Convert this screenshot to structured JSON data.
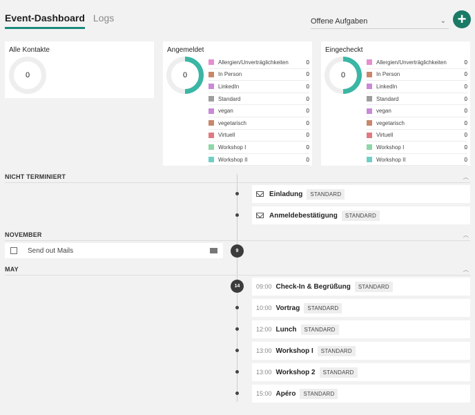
{
  "header": {
    "tabs": [
      {
        "label": "Event-Dashboard",
        "active": true
      },
      {
        "label": "Logs",
        "active": false
      }
    ],
    "select_value": "Offene Aufgaben",
    "add_icon": "plus-icon",
    "accent": "#1a7a66"
  },
  "cards": {
    "alle": {
      "title": "Alle Kontakte",
      "value": "0"
    },
    "angemeldet": {
      "title": "Angemeldet",
      "value": "0",
      "legend": [
        {
          "label": "Allergien/Unverträglichkeiten",
          "value": "0",
          "color": "#e58fcf"
        },
        {
          "label": "In Person",
          "value": "0",
          "color": "#c9876b"
        },
        {
          "label": "LinkedIn",
          "value": "0",
          "color": "#c98ad6"
        },
        {
          "label": "Standard",
          "value": "0",
          "color": "#9e9e9e"
        },
        {
          "label": "vegan",
          "value": "0",
          "color": "#c98ad6"
        },
        {
          "label": "vegetarisch",
          "value": "0",
          "color": "#c9876b"
        },
        {
          "label": "Virtuell",
          "value": "0",
          "color": "#e07a80"
        },
        {
          "label": "Workshop I",
          "value": "0",
          "color": "#8fd6a8"
        },
        {
          "label": "Workshop II",
          "value": "0",
          "color": "#6fcfc5"
        }
      ]
    },
    "eingecheckt": {
      "title": "Eingecheckt",
      "value": "0",
      "legend": [
        {
          "label": "Allergien/Unverträglichkeiten",
          "value": "0",
          "color": "#e58fcf"
        },
        {
          "label": "In Person",
          "value": "0",
          "color": "#c9876b"
        },
        {
          "label": "LinkedIn",
          "value": "0",
          "color": "#c98ad6"
        },
        {
          "label": "Standard",
          "value": "0",
          "color": "#9e9e9e"
        },
        {
          "label": "vegan",
          "value": "0",
          "color": "#c98ad6"
        },
        {
          "label": "vegetarisch",
          "value": "0",
          "color": "#c9876b"
        },
        {
          "label": "Virtuell",
          "value": "0",
          "color": "#e07a80"
        },
        {
          "label": "Workshop I",
          "value": "0",
          "color": "#8fd6a8"
        },
        {
          "label": "Workshop II",
          "value": "0",
          "color": "#6fcfc5"
        }
      ]
    }
  },
  "sections": {
    "nicht_terminiert": "NICHT TERMINIERT",
    "november": "NOVEMBER",
    "may": "MAY"
  },
  "unscheduled": [
    {
      "title": "Einladung",
      "tag": "STANDARD"
    },
    {
      "title": "Anmeldebestätigung",
      "tag": "STANDARD"
    }
  ],
  "november": {
    "badge": "9",
    "task": "Send out Mails"
  },
  "may": {
    "badge": "14",
    "items": [
      {
        "time": "09:00",
        "title": "Check-In & Begrüßung",
        "tag": "STANDARD"
      },
      {
        "time": "10:00",
        "title": "Vortrag",
        "tag": "STANDARD"
      },
      {
        "time": "12:00",
        "title": "Lunch",
        "tag": "STANDARD"
      },
      {
        "time": "13:00",
        "title": "Workshop I",
        "tag": "STANDARD"
      },
      {
        "time": "13:00",
        "title": "Workshop 2",
        "tag": "STANDARD"
      },
      {
        "time": "15:00",
        "title": "Apéro",
        "tag": "STANDARD"
      }
    ]
  },
  "colors": {
    "ring": "#3bb6a5",
    "ring_bg": "#eeeeee"
  }
}
